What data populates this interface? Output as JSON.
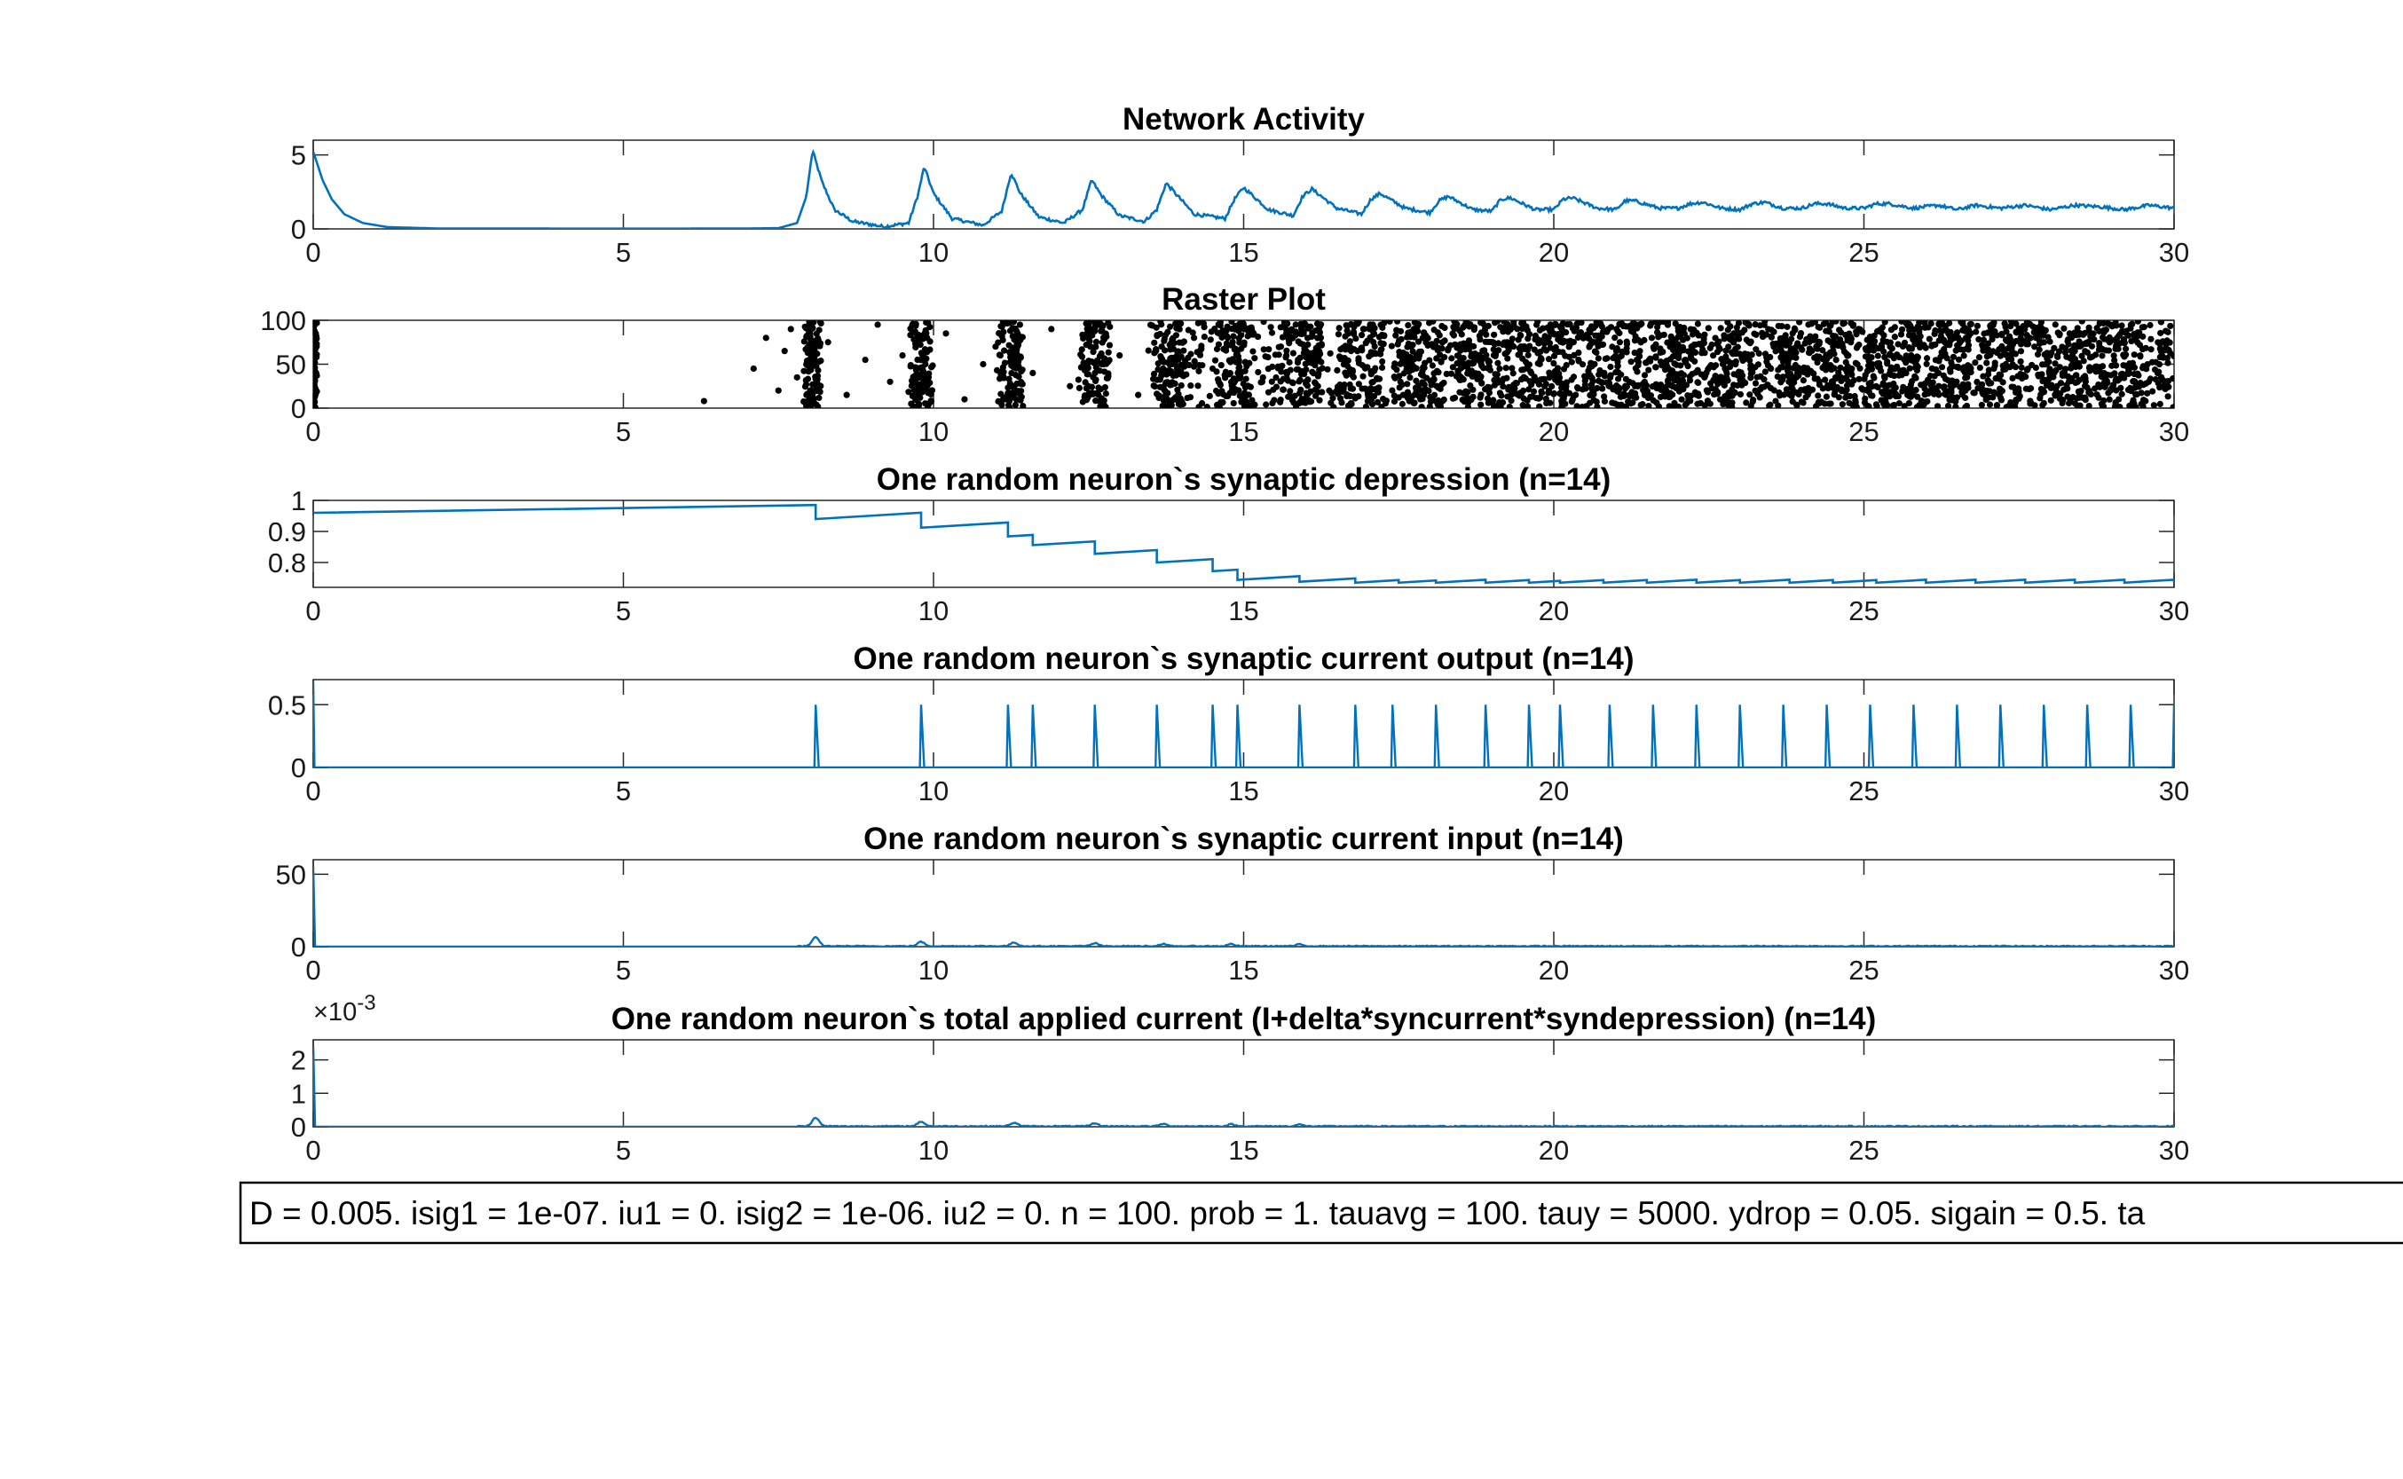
{
  "chart_data": [
    {
      "type": "line",
      "title": "Network Activity",
      "xlim": [
        0,
        30
      ],
      "ylim": [
        0,
        6
      ],
      "xticks": [
        0,
        5,
        10,
        15,
        20,
        25,
        30
      ],
      "yticks": [
        0,
        5
      ],
      "series": [
        {
          "color": "#0072BD",
          "x": [
            0,
            0.05,
            0.15,
            0.3,
            0.5,
            0.8,
            1.2,
            2,
            4,
            6,
            7,
            7.5,
            7.8,
            7.95,
            8.05,
            8.2,
            8.4,
            8.7,
            9.2,
            9.6,
            9.75,
            9.85,
            10.0,
            10.3,
            10.8,
            11.1,
            11.25,
            11.4,
            11.7,
            12.1,
            12.4,
            12.55,
            12.7,
            13.0,
            13.4,
            13.6,
            13.75,
            13.9,
            14.2,
            14.7,
            14.85,
            15.0,
            15.4,
            15.8,
            15.95,
            16.1,
            16.5,
            16.9,
            17.05,
            17.2,
            17.6,
            18.0,
            18.15,
            18.3,
            18.7,
            19.0,
            19.15,
            19.3,
            19.7,
            20.0,
            20.15,
            20.3,
            20.7,
            21.0,
            21.15,
            21.3,
            21.7,
            22.0,
            22.2,
            22.4,
            22.7,
            23.0,
            23.2,
            23.4,
            23.7,
            24.0,
            24.2,
            24.4,
            24.7,
            25.0,
            25.2,
            25.4,
            25.8,
            26.2,
            26.5,
            26.8,
            27.2,
            27.6,
            28.0,
            28.4,
            28.8,
            29.2,
            29.6,
            30
          ],
          "y": [
            5.2,
            4.6,
            3.3,
            2.0,
            1.0,
            0.4,
            0.12,
            0.03,
            0.02,
            0.02,
            0.03,
            0.05,
            0.4,
            2.2,
            5.3,
            3.2,
            1.3,
            0.5,
            0.15,
            0.4,
            2.3,
            4.2,
            2.4,
            0.7,
            0.25,
            1.2,
            3.8,
            2.4,
            0.8,
            0.4,
            1.3,
            3.3,
            2.3,
            0.9,
            0.5,
            1.3,
            3.1,
            2.4,
            1.0,
            0.7,
            2.0,
            2.8,
            1.3,
            0.9,
            2.2,
            2.7,
            1.4,
            1.0,
            2.0,
            2.4,
            1.4,
            1.1,
            1.9,
            2.2,
            1.3,
            1.2,
            2.0,
            2.1,
            1.3,
            1.3,
            2.0,
            2.1,
            1.4,
            1.3,
            1.9,
            1.9,
            1.4,
            1.4,
            1.7,
            1.8,
            1.4,
            1.3,
            1.7,
            1.8,
            1.4,
            1.4,
            1.7,
            1.7,
            1.4,
            1.4,
            1.7,
            1.7,
            1.4,
            1.6,
            1.3,
            1.6,
            1.4,
            1.6,
            1.3,
            1.6,
            1.5,
            1.3,
            1.6,
            1.4
          ]
        }
      ]
    },
    {
      "type": "scatter",
      "title": "Raster Plot",
      "xlim": [
        0,
        30
      ],
      "ylim": [
        0,
        100
      ],
      "xticks": [
        0,
        5,
        10,
        15,
        20,
        25,
        30
      ],
      "yticks": [
        0,
        50,
        100
      ],
      "series": [
        {
          "color": "#000000",
          "note_bursts": [
            0,
            8.05,
            9.8,
            11.25,
            12.6,
            13.75,
            14.85,
            15.9,
            16.9,
            17.85,
            18.8,
            19.7,
            20.6,
            21.5,
            22.4,
            23.3,
            24.2,
            25.1,
            26.0,
            26.9,
            27.8,
            28.7,
            29.6
          ],
          "x": [
            6.3,
            7.1,
            7.3,
            7.5,
            7.6,
            7.7,
            7.8,
            8.3,
            8.6,
            8.9,
            9.1,
            9.3,
            9.5,
            10.2,
            10.5,
            10.8,
            11.0,
            11.6,
            11.9,
            12.2,
            13.0,
            13.3,
            14.2,
            14.5,
            15.3,
            15.6
          ],
          "y": [
            8,
            45,
            80,
            20,
            65,
            90,
            35,
            75,
            15,
            55,
            95,
            30,
            60,
            85,
            10,
            50,
            70,
            40,
            90,
            25,
            60,
            15,
            80,
            45,
            30,
            70
          ]
        }
      ]
    },
    {
      "type": "line",
      "title": "One random neuron`s synaptic depression (n=14)",
      "xlim": [
        0,
        30
      ],
      "ylim": [
        0.72,
        1
      ],
      "xticks": [
        0,
        5,
        10,
        15,
        20,
        25,
        30
      ],
      "yticks": [
        0.8,
        0.9,
        1
      ],
      "ytick_labels": [
        "0.8",
        "0.9",
        "1"
      ],
      "series": [
        {
          "color": "#0072BD",
          "jumps_x": [
            8.1,
            9.8,
            11.2,
            11.6,
            12.6,
            13.6,
            14.5,
            14.9,
            15.9,
            16.8,
            17.5,
            18.1,
            18.9,
            19.6,
            20.1,
            20.8,
            21.5,
            22.3,
            23.0,
            23.8,
            24.5,
            25.2,
            26.0,
            26.8,
            27.6,
            28.4,
            29.2,
            30.0
          ],
          "start": 0.96,
          "peak_before_first": 0.985,
          "after_first": 0.94,
          "floor": 0.735,
          "recover_rate": 0.012
        }
      ]
    },
    {
      "type": "line",
      "title": "One random neuron`s synaptic current output (n=14)",
      "xlim": [
        0,
        30
      ],
      "ylim": [
        0,
        0.7
      ],
      "xticks": [
        0,
        5,
        10,
        15,
        20,
        25,
        30
      ],
      "yticks": [
        0,
        0.5
      ],
      "series": [
        {
          "color": "#0072BD",
          "spikes_x": [
            8.1,
            9.8,
            11.2,
            11.6,
            12.6,
            13.6,
            14.5,
            14.9,
            15.9,
            16.8,
            17.4,
            18.1,
            18.9,
            19.6,
            20.1,
            20.9,
            21.6,
            22.3,
            23.0,
            23.7,
            24.4,
            25.1,
            25.8,
            26.5,
            27.2,
            27.9,
            28.6,
            29.3,
            30.0
          ],
          "spike_height": 0.5,
          "initial": 0.68
        }
      ]
    },
    {
      "type": "line",
      "title": "One random neuron`s synaptic current input (n=14)",
      "xlim": [
        0,
        30
      ],
      "ylim": [
        0,
        60
      ],
      "xticks": [
        0,
        5,
        10,
        15,
        20,
        25,
        30
      ],
      "yticks": [
        0,
        50
      ],
      "series": [
        {
          "color": "#0072BD",
          "initial": 55,
          "bumps_x": [
            8.1,
            9.8,
            11.3,
            12.6,
            13.7,
            14.8,
            15.9
          ],
          "bumps_y": [
            6,
            3,
            2.5,
            2,
            1.5,
            1.5,
            1.2
          ]
        }
      ]
    },
    {
      "type": "line",
      "title": "One random neuron`s total applied current (I+delta*syncurrent*syndepression) (n=14)",
      "y_exponent_label": "×10",
      "y_exponent_power": "-3",
      "xlim": [
        0,
        30
      ],
      "ylim": [
        0,
        2.6
      ],
      "xticks": [
        0,
        5,
        10,
        15,
        20,
        25,
        30
      ],
      "yticks": [
        0,
        1,
        2
      ],
      "series": [
        {
          "color": "#0072BD",
          "initial": 2.4,
          "bumps_x": [
            8.1,
            9.8,
            11.3,
            12.6,
            13.7,
            14.8,
            15.9
          ],
          "bumps_y": [
            0.25,
            0.14,
            0.11,
            0.09,
            0.07,
            0.06,
            0.05
          ]
        }
      ]
    }
  ],
  "info_box": {
    "text": "D = 0.005. isig1 = 1e-07. iu1 = 0. isig2 = 1e-06. iu2 = 0. n = 100. prob = 1. tauavg = 100. tauy = 5000. ydrop = 0.05. sigain = 0.5. ta"
  }
}
